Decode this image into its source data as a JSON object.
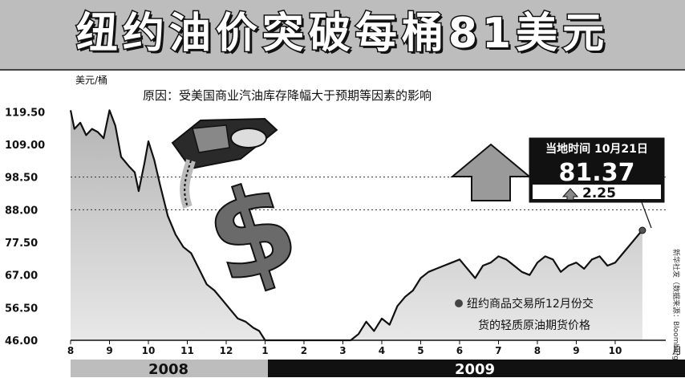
{
  "title": "纽约油价突破每桶81美元",
  "subtitle": "原因：受美国商业汽油库存降幅大于预期等因素的影响",
  "callout": {
    "time_label": "当地时间 10月21日",
    "price": "81.37",
    "change": "2.25"
  },
  "legend_label_line1": "纽约商品交易所12月份交",
  "legend_label_line2": "货的轻质原油期货价格",
  "source": "新华社发（数据来源：Bloomberg）",
  "colors": {
    "area": "#b4b4b4",
    "line": "#111111",
    "arrow": "#9a9a9a",
    "year2009": "#111111",
    "year2008": "#bdbdbd"
  },
  "chart_data": {
    "type": "area",
    "ylabel": "美元/桶",
    "xlabel_end": "月",
    "ylim": [
      46.0,
      125.0
    ],
    "y_ticks": [
      "119.50",
      "109.00",
      "98.50",
      "88.00",
      "77.50",
      "67.00",
      "56.50",
      "46.00"
    ],
    "y_tick_values": [
      119.5,
      109.0,
      98.5,
      88.0,
      77.5,
      67.0,
      56.5,
      46.0
    ],
    "dashed_lines": [
      98.5,
      88.0
    ],
    "x_ticks": [
      "8",
      "9",
      "10",
      "11",
      "12",
      "1",
      "2",
      "3",
      "4",
      "5",
      "6",
      "7",
      "8",
      "9",
      "10"
    ],
    "x_tick_positions": [
      0,
      1,
      2,
      3,
      4,
      5,
      6,
      7,
      8,
      9,
      10,
      11,
      12,
      13,
      14
    ],
    "years": [
      "2008",
      "2009"
    ],
    "year_split_month_index": 5,
    "x_max": 15.3,
    "series": [
      {
        "x": [
          0,
          0.1,
          0.25,
          0.4,
          0.55,
          0.7,
          0.85,
          1.0,
          1.15,
          1.3,
          1.5,
          1.65,
          1.75,
          1.9,
          2.0,
          2.15,
          2.3,
          2.5,
          2.7,
          2.9,
          3.1,
          3.3,
          3.5,
          3.7,
          3.9,
          4.1,
          4.3,
          4.5,
          4.7,
          4.85,
          5.0,
          5.2,
          5.4,
          5.6,
          5.8,
          6.0,
          6.2,
          6.4,
          6.6,
          6.8,
          7.0,
          7.2,
          7.4,
          7.6,
          7.8,
          8.0,
          8.2,
          8.4,
          8.6,
          8.8,
          9.0,
          9.2,
          9.4,
          9.6,
          9.8,
          10.0,
          10.2,
          10.4,
          10.6,
          10.8,
          11.0,
          11.2,
          11.4,
          11.6,
          11.8,
          12.0,
          12.2,
          12.4,
          12.6,
          12.8,
          13.0,
          13.2,
          13.4,
          13.6,
          13.8,
          14.0,
          14.2,
          14.4,
          14.6,
          14.7
        ],
        "values": [
          120,
          114,
          116,
          112,
          114,
          113,
          111,
          120,
          115,
          105,
          102,
          100,
          94,
          103,
          110,
          104,
          96,
          86,
          80,
          76,
          74,
          69,
          64,
          62,
          59,
          56,
          53,
          52,
          50,
          49,
          45,
          44,
          42,
          40,
          41,
          43,
          41,
          39,
          41,
          44,
          46,
          45,
          48,
          52,
          49,
          53,
          51,
          57,
          60,
          62,
          66,
          68,
          69,
          70,
          71,
          72,
          69,
          66,
          70,
          71,
          73,
          72,
          70,
          68,
          67,
          71,
          73,
          72,
          68,
          70,
          71,
          69,
          72,
          73,
          70,
          71,
          74,
          77,
          80,
          81.37
        ]
      }
    ]
  }
}
